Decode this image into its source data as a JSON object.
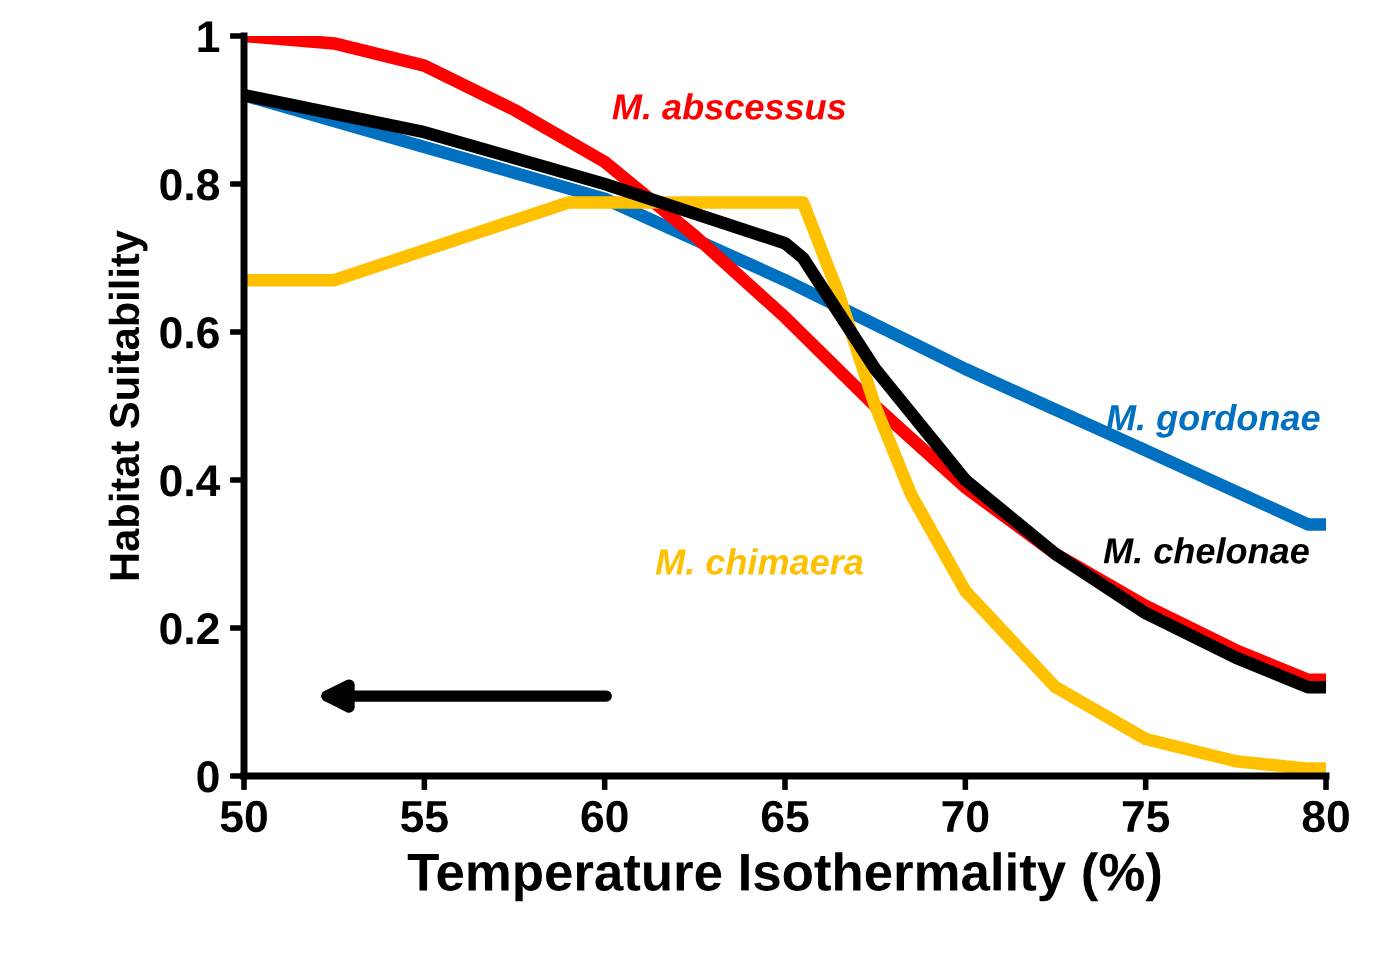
{
  "chart_data": {
    "type": "line",
    "xlabel": "Temperature Isothermality (%)",
    "ylabel": "Habitat Suitability",
    "xlim": [
      50,
      80
    ],
    "xticks": [
      50,
      55,
      60,
      65,
      70,
      75,
      80
    ],
    "ylim": [
      0,
      1
    ],
    "yticks": [
      0,
      {
        "value": 0.2,
        "label": "0.2"
      },
      {
        "value": 0.4,
        "label": "0.4"
      },
      {
        "value": 0.6,
        "label": "0.6"
      },
      {
        "value": 0.8,
        "label": "0.8"
      },
      1
    ],
    "grid": false,
    "legend": false,
    "marker": "none",
    "line_style": "solid",
    "series": [
      {
        "name": "M. gordonae",
        "color": "#0070c0",
        "x": [
          50,
          55,
          60,
          65,
          70,
          75,
          79.5,
          80
        ],
        "values": [
          0.92,
          0.85,
          0.78,
          0.67,
          0.55,
          0.44,
          0.34,
          0.34
        ]
      },
      {
        "name": "M. abscessus",
        "color": "#ff0000",
        "x": [
          50,
          52.5,
          55,
          57.5,
          60,
          62.5,
          65,
          67.5,
          70,
          72.5,
          75,
          77.5,
          79.5,
          80
        ],
        "values": [
          1.0,
          0.99,
          0.96,
          0.9,
          0.83,
          0.73,
          0.62,
          0.5,
          0.39,
          0.3,
          0.23,
          0.17,
          0.13,
          0.13
        ]
      },
      {
        "name": "M. chimaera",
        "color": "#ffc000",
        "x": [
          50,
          52.5,
          59,
          65.5,
          66.5,
          67.5,
          68.5,
          70,
          72.5,
          75,
          77.5,
          79.5,
          80
        ],
        "values": [
          0.67,
          0.67,
          0.775,
          0.775,
          0.65,
          0.5,
          0.38,
          0.25,
          0.12,
          0.05,
          0.02,
          0.01,
          0.01
        ]
      },
      {
        "name": "M. chelonae",
        "color": "#000000",
        "x": [
          50,
          55,
          60,
          65,
          65.5,
          67.5,
          70,
          72.5,
          75,
          77.5,
          79.5,
          80
        ],
        "values": [
          0.92,
          0.87,
          0.8,
          0.72,
          0.7,
          0.55,
          0.4,
          0.3,
          0.22,
          0.16,
          0.12,
          0.12
        ]
      }
    ]
  }
}
